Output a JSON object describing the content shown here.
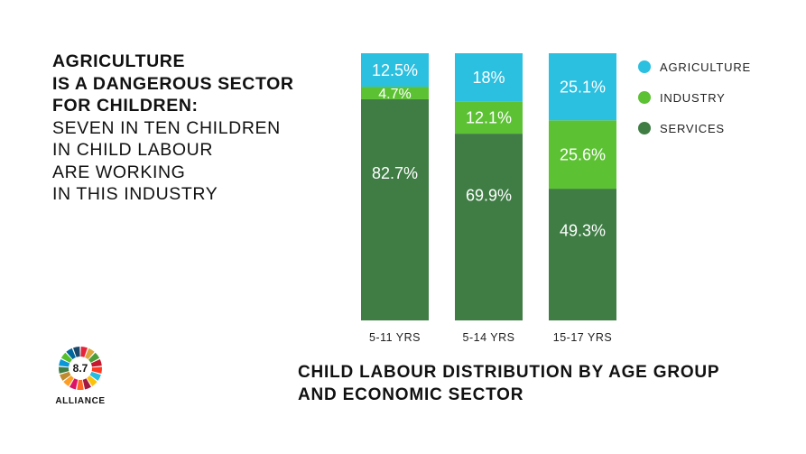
{
  "headline": {
    "bold_lines": [
      "AGRICULTURE",
      "IS A DANGEROUS SECTOR",
      "FOR CHILDREN:"
    ],
    "regular_lines": [
      "SEVEN IN TEN CHILDREN",
      "IN CHILD LABOUR",
      "ARE WORKING",
      "IN THIS INDUSTRY"
    ]
  },
  "caption": {
    "line1": "CHILD LABOUR DISTRIBUTION BY AGE GROUP",
    "line2": "AND ECONOMIC SECTOR"
  },
  "logo": {
    "number": "8.7",
    "word": "ALLIANCE"
  },
  "chart_data": {
    "type": "bar",
    "stacked": true,
    "categories": [
      "5-11 YRS",
      "5-14 YRS",
      "15-17 YRS"
    ],
    "series": [
      {
        "name": "SERVICES",
        "color": "#3f7d45",
        "values": [
          82.7,
          69.9,
          49.3
        ],
        "labels": [
          "82.7%",
          "69.9%",
          "49.3%"
        ]
      },
      {
        "name": "INDUSTRY",
        "color": "#5cc234",
        "values": [
          4.7,
          12.1,
          25.6
        ],
        "labels": [
          "4.7%",
          "12.1%",
          "25.6%"
        ]
      },
      {
        "name": "AGRICULTURE",
        "color": "#2bbfe0",
        "values": [
          12.5,
          18,
          25.1
        ],
        "labels": [
          "12.5%",
          "18%",
          "25.1%"
        ]
      }
    ],
    "legend_order": [
      "AGRICULTURE",
      "INDUSTRY",
      "SERVICES"
    ],
    "legend_position": "top-right",
    "ylim": [
      0,
      100
    ],
    "grid": false
  }
}
